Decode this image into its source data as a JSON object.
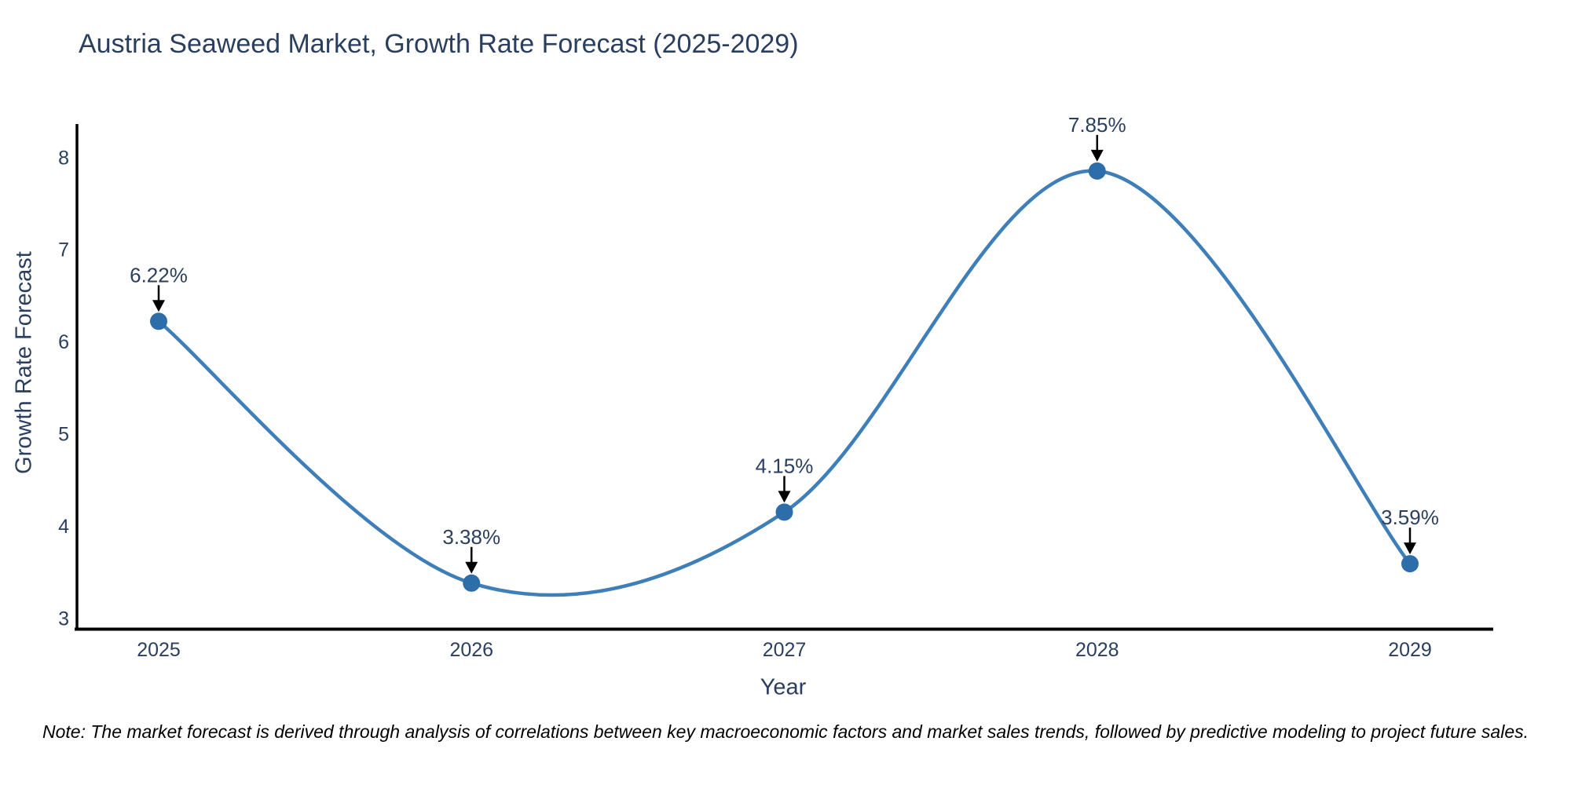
{
  "note": "Note: The market forecast is derived through analysis of correlations between key macroeconomic factors and market sales trends, followed by predictive modeling to project future sales.",
  "chart_data": {
    "type": "line",
    "title": "Austria Seaweed Market, Growth Rate Forecast (2025-2029)",
    "xlabel": "Year",
    "ylabel": "Growth Rate Forecast",
    "categories": [
      "2025",
      "2026",
      "2027",
      "2028",
      "2029"
    ],
    "series": [
      {
        "name": "Growth Rate Forecast",
        "values": [
          6.22,
          3.38,
          4.15,
          7.85,
          3.59
        ]
      }
    ],
    "point_labels": [
      "6.22%",
      "3.38%",
      "4.15%",
      "7.85%",
      "3.59%"
    ],
    "y_ticks": [
      8,
      7,
      6,
      5,
      4,
      3
    ],
    "ylim": [
      2.88,
      8.36
    ],
    "line_shape": "spline",
    "grid": false,
    "legend": "none",
    "colors": {
      "line": "#3f7fb9",
      "marker": "#2d6da9",
      "arrow": "#000000",
      "axis": "#000000",
      "text": "#2a3f5f",
      "note_text": "#000000"
    }
  }
}
